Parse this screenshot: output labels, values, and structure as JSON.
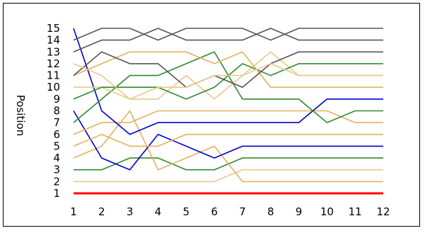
{
  "chart_data": {
    "type": "line",
    "ylabel": "Position",
    "xlabel": "",
    "x": [
      1,
      2,
      3,
      4,
      5,
      6,
      7,
      8,
      9,
      10,
      11,
      12
    ],
    "xlim": [
      1,
      12
    ],
    "ylim": [
      1,
      15
    ],
    "yticks": [
      1,
      2,
      3,
      4,
      5,
      6,
      7,
      8,
      9,
      10,
      11,
      12,
      13,
      14,
      15
    ],
    "grid": false,
    "legend": "none",
    "series": [
      {
        "color": "#ff0000",
        "values": [
          1,
          1,
          1,
          1,
          1,
          1,
          1,
          1,
          1,
          1,
          1,
          1
        ]
      },
      {
        "color": "#eac88c",
        "values": [
          2,
          2,
          2,
          2,
          2,
          2,
          3,
          3,
          3,
          3,
          3,
          3
        ]
      },
      {
        "color": "#2e8b2e",
        "values": [
          3,
          3,
          4,
          4,
          3,
          3,
          4,
          4,
          4,
          4,
          4,
          4
        ]
      },
      {
        "color": "#e6b060",
        "values": [
          4,
          5,
          8,
          3,
          4,
          5,
          2,
          2,
          2,
          2,
          2,
          2
        ]
      },
      {
        "color": "#0000cc",
        "values": [
          8,
          4,
          3,
          6,
          5,
          4,
          5,
          5,
          5,
          5,
          5,
          5
        ]
      },
      {
        "color": "#e6b060",
        "values": [
          5,
          6,
          5,
          5,
          6,
          6,
          6,
          6,
          6,
          6,
          6,
          6
        ]
      },
      {
        "color": "#e6b060",
        "values": [
          6,
          7,
          7,
          8,
          8,
          8,
          8,
          8,
          8,
          8,
          7,
          7
        ]
      },
      {
        "color": "#0000cc",
        "values": [
          15,
          8,
          6,
          7,
          7,
          7,
          7,
          7,
          7,
          9,
          9,
          9
        ]
      },
      {
        "color": "#2e8b2e",
        "values": [
          7,
          9,
          11,
          11,
          12,
          13,
          9,
          9,
          9,
          7,
          8,
          8
        ]
      },
      {
        "color": "#eac88c",
        "values": [
          10,
          10,
          9,
          9,
          11,
          9,
          11,
          13,
          11,
          11,
          11,
          11
        ]
      },
      {
        "color": "#2e8b2e",
        "values": [
          9,
          10,
          10,
          10,
          9,
          10,
          12,
          11,
          12,
          12,
          12,
          12
        ]
      },
      {
        "color": "#e6b060",
        "values": [
          11,
          12,
          13,
          13,
          13,
          12,
          13,
          10,
          10,
          10,
          10,
          10
        ]
      },
      {
        "color": "#555555",
        "values": [
          11,
          13,
          12,
          12,
          10,
          11,
          10,
          12,
          13,
          13,
          13,
          13
        ]
      },
      {
        "color": "#555555",
        "values": [
          14,
          15,
          15,
          14,
          15,
          15,
          15,
          14,
          15,
          15,
          15,
          15
        ]
      },
      {
        "color": "#555555",
        "values": [
          13,
          14,
          14,
          15,
          14,
          14,
          14,
          15,
          14,
          14,
          14,
          14
        ]
      },
      {
        "color": "#eac88c",
        "values": [
          12,
          11,
          9,
          10,
          10,
          11,
          11,
          12,
          11,
          11,
          11,
          11
        ]
      }
    ]
  }
}
